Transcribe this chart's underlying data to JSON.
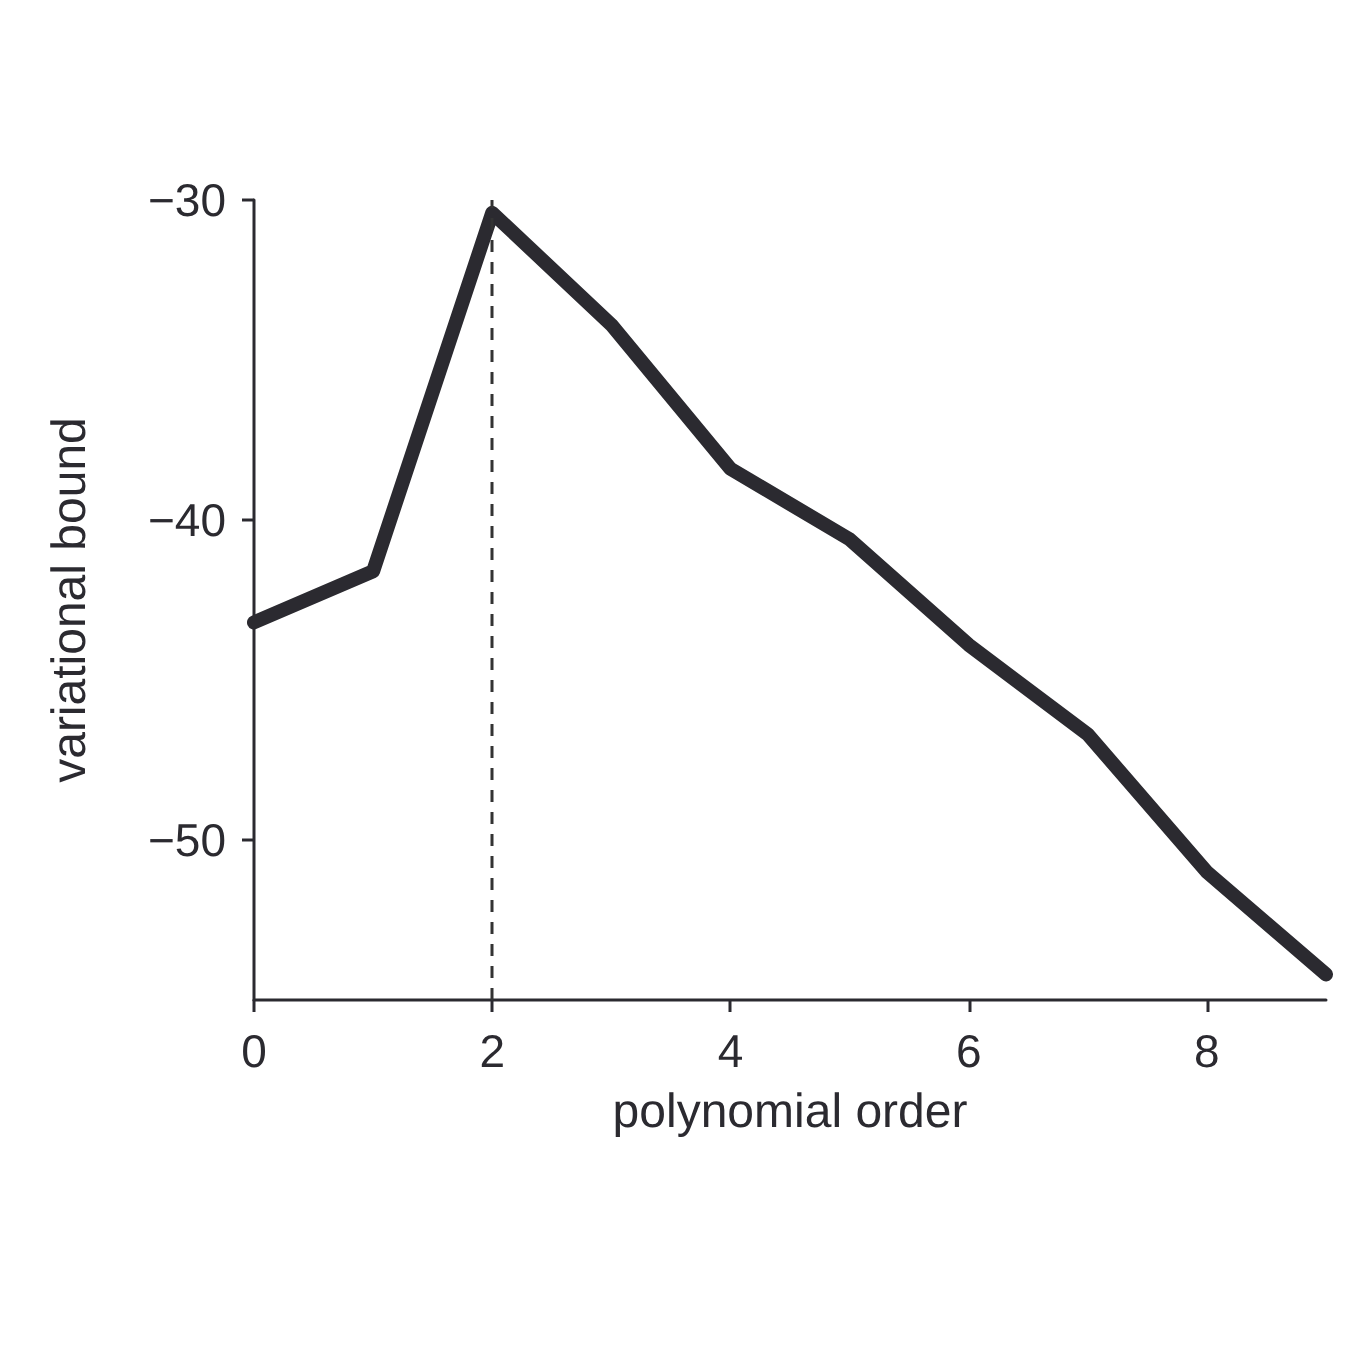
{
  "chart_data": {
    "type": "line",
    "xlabel": "polynomial order",
    "ylabel": "variational bound",
    "x": [
      0,
      1,
      2,
      3,
      4,
      5,
      6,
      7,
      8,
      9
    ],
    "series": [
      {
        "color": "#2b2a30",
        "values": [
          -43.2,
          -41.6,
          -30.4,
          -33.9,
          -38.4,
          -40.6,
          -43.9,
          -46.7,
          -51,
          -54.2
        ]
      }
    ],
    "xlim": [
      0,
      9
    ],
    "xticks": [
      0,
      2,
      4,
      6,
      8
    ],
    "ylim": [
      -55,
      -30
    ],
    "yticks": [
      -30,
      -40,
      -50
    ],
    "ref_lines": [
      {
        "axis": "x",
        "value": 2,
        "color": "#333333",
        "line_style": "dashed"
      }
    ],
    "grid": false,
    "line_style": "solid"
  }
}
